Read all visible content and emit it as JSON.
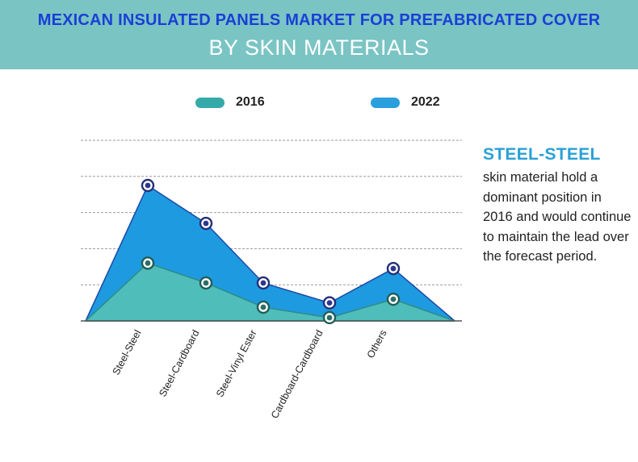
{
  "title": {
    "line1": "MEXICAN INSULATED PANELS MARKET FOR PREFABRICATED COVER",
    "line2": "BY SKIN MATERIALS"
  },
  "legend": [
    {
      "label": "2016",
      "color": "#35aaa8"
    },
    {
      "label": "2022",
      "color": "#2a9fde"
    }
  ],
  "note": {
    "heading": "STEEL-STEEL",
    "body": "skin material hold a dominant position in 2016 and would continue to maintain the lead over the forecast period."
  },
  "chart_data": {
    "type": "area",
    "categories": [
      "Steel-Steel",
      "Steel-Cardboard",
      "Steel-Vinyl Ester",
      "Cardboard-Cardboard",
      "Others"
    ],
    "series": [
      {
        "name": "2016",
        "values": [
          1.6,
          1.05,
          0.38,
          0.09,
          0.6
        ],
        "color": "#4fbdba"
      },
      {
        "name": "2022",
        "values": [
          3.75,
          2.7,
          1.05,
          0.5,
          1.45
        ],
        "color": "#1e9ae0"
      }
    ],
    "ylim": [
      0,
      5
    ],
    "grid": true,
    "legend_position": "top"
  }
}
